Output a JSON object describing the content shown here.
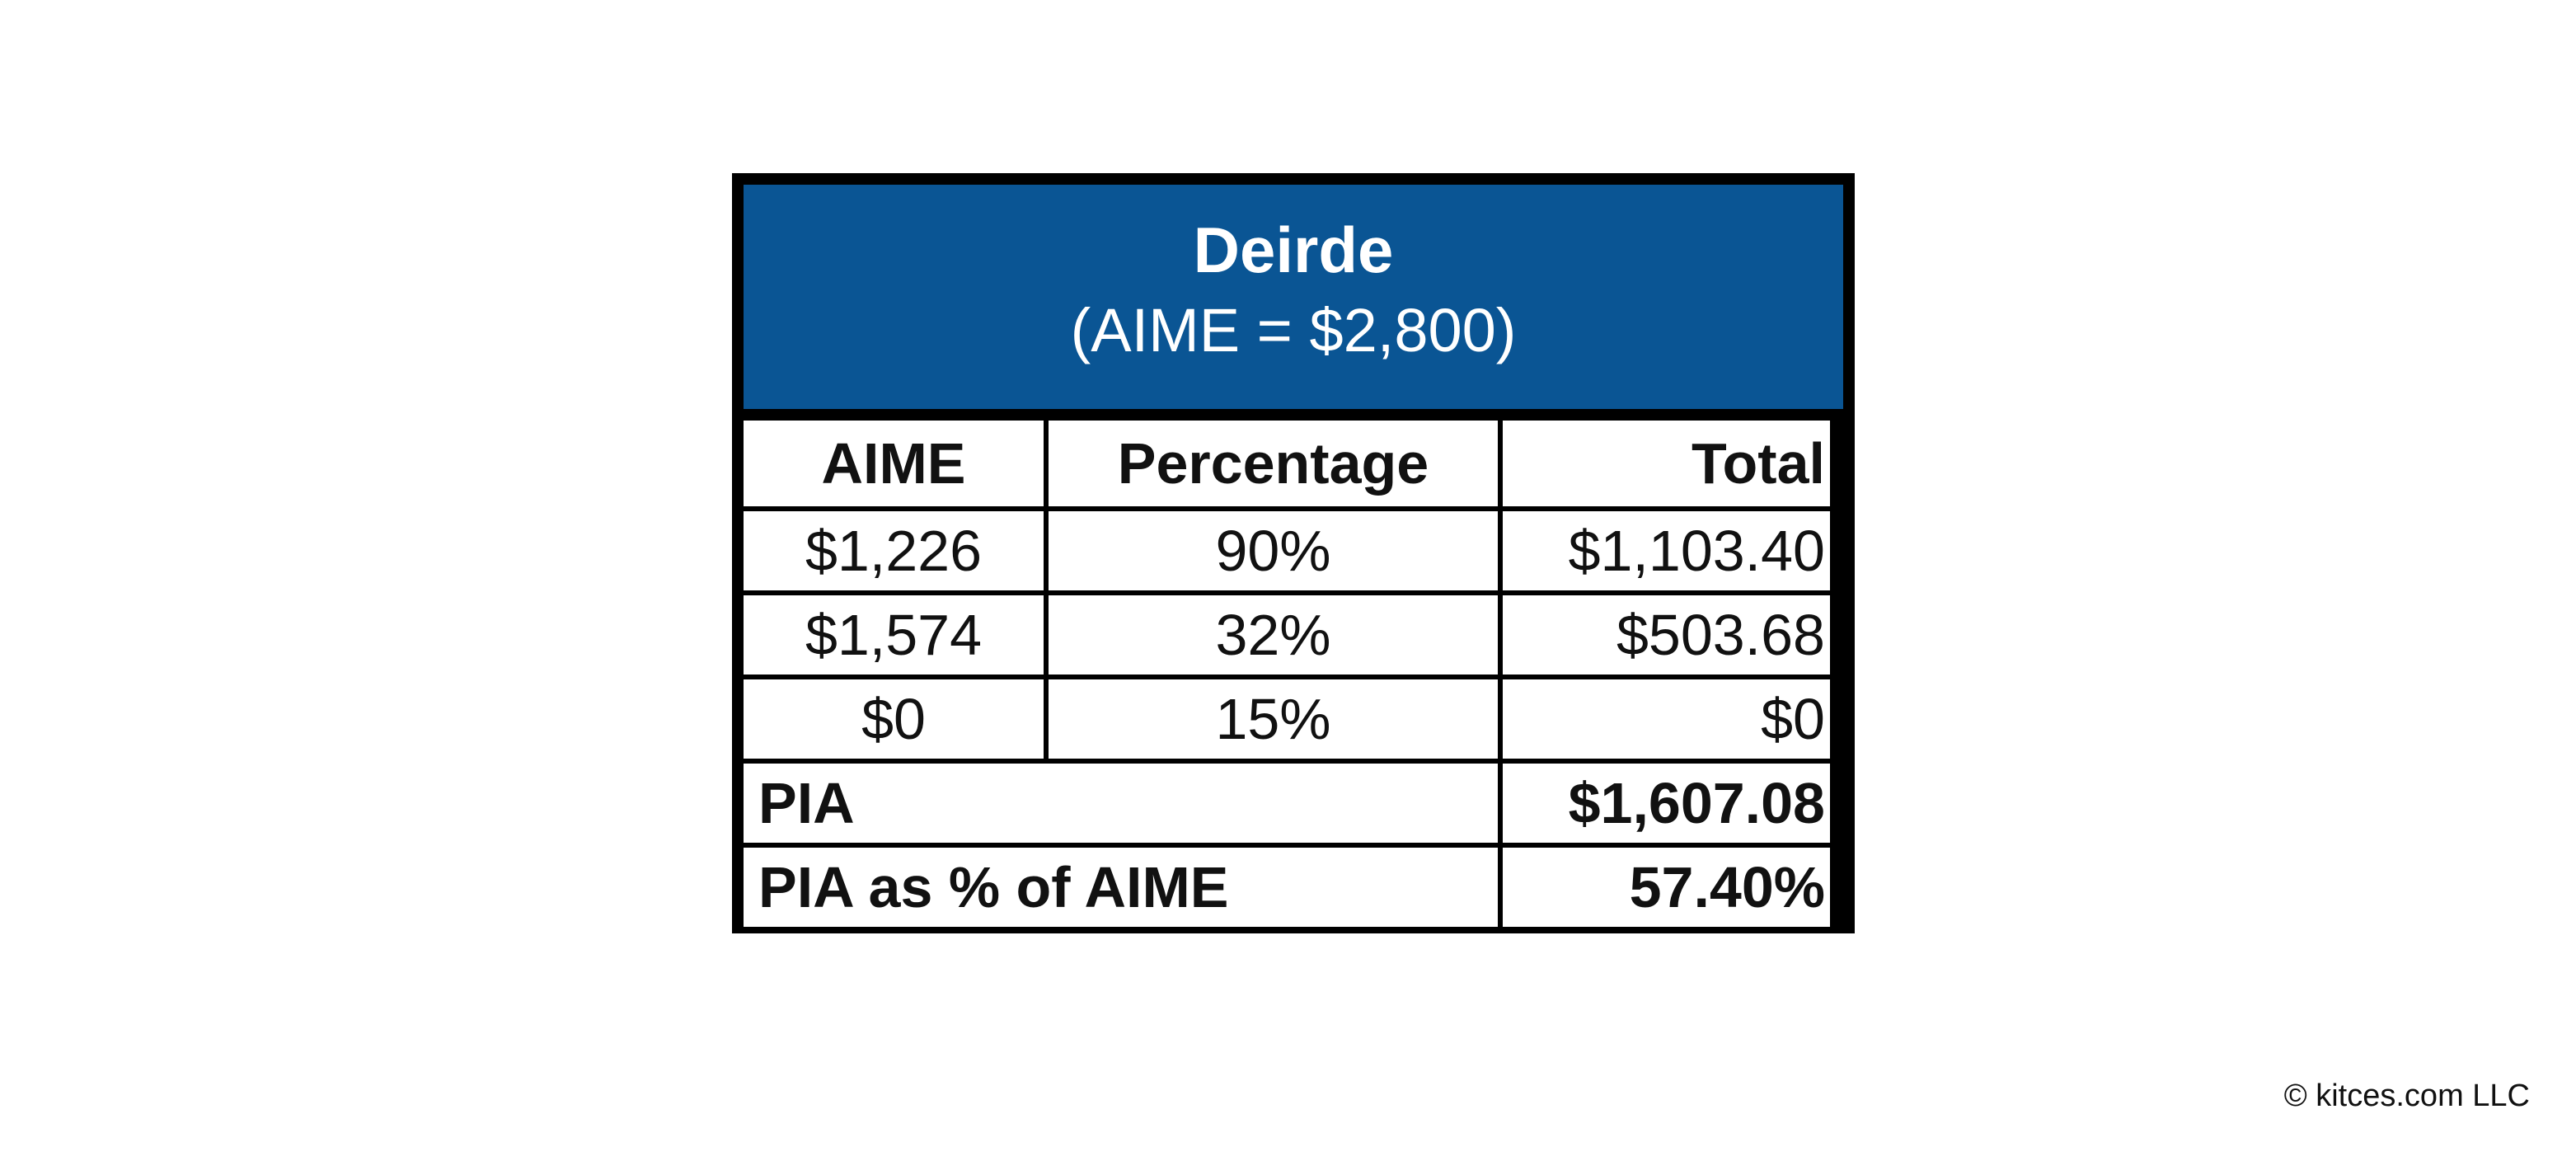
{
  "header": {
    "name": "Deirde",
    "subtitle": "(AIME = $2,800)"
  },
  "table": {
    "columns": [
      "AIME",
      "Percentage",
      "Total"
    ],
    "rows": [
      {
        "aime": "$1,226",
        "percentage": "90%",
        "total": "$1,103.40"
      },
      {
        "aime": "$1,574",
        "percentage": "32%",
        "total": "$503.68"
      },
      {
        "aime": "$0",
        "percentage": "15%",
        "total": "$0"
      }
    ],
    "summary": [
      {
        "label": "PIA",
        "value": "$1,607.08"
      },
      {
        "label": "PIA as % of AIME",
        "value": "57.40%"
      }
    ]
  },
  "colors": {
    "header_background": "#0a5594",
    "header_text": "#ffffff",
    "border": "#000000"
  },
  "footer": {
    "credit": "© kitces.com LLC"
  }
}
